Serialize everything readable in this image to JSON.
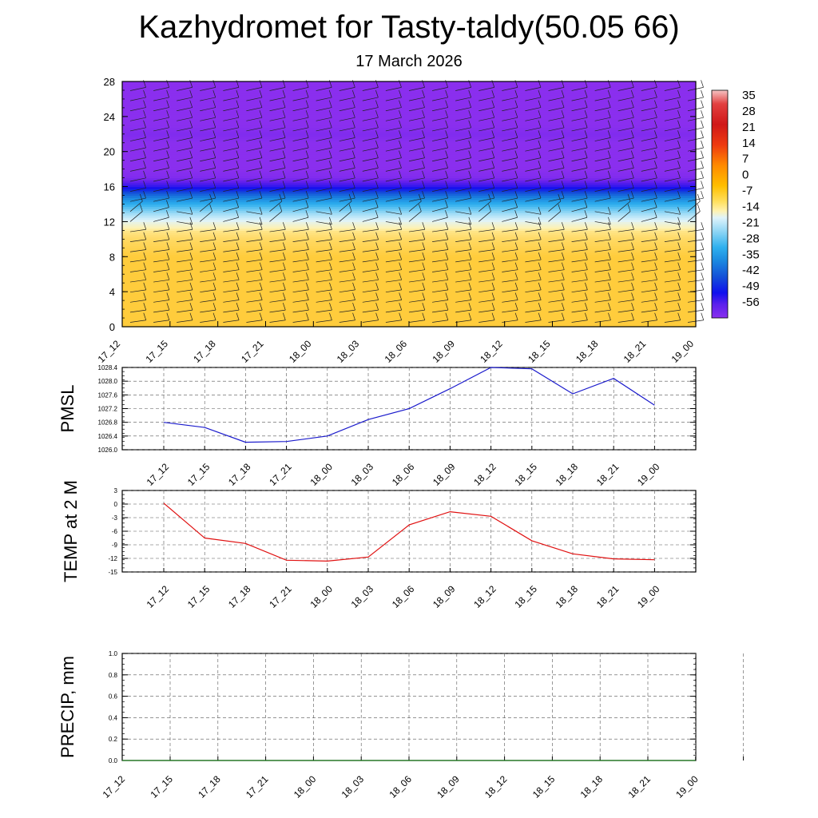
{
  "page": {
    "title": "Kazhydromet for Tasty-taldy(50.05 66)",
    "subtitle": "17 March 2026"
  },
  "colors": {
    "pmsl_line": "#1a1acc",
    "temp_line": "#e01010",
    "precip_line": "#1a7a1a",
    "barb": "#222222",
    "grid": "#555555"
  },
  "chart_data": [
    {
      "type": "heatmap",
      "name": "time-height-section",
      "title": "",
      "xlabel": "",
      "ylabel": "",
      "x_ticks": [
        "17_12",
        "17_15",
        "17_18",
        "17_21",
        "18_00",
        "18_03",
        "18_06",
        "18_09",
        "18_12",
        "18_15",
        "18_18",
        "18_21",
        "19_00"
      ],
      "y_ticks": [
        "0",
        "4",
        "8",
        "12",
        "16",
        "20",
        "24",
        "28"
      ],
      "ylim": [
        0,
        28
      ],
      "colorbar_labels": [
        "35",
        "28",
        "21",
        "14",
        "7",
        "0",
        "-7",
        "-14",
        "-21",
        "-28",
        "-35",
        "-42",
        "-49",
        "-56"
      ],
      "colorbar_range": [
        -60,
        38
      ],
      "levels_height": [
        0,
        1,
        2,
        3,
        4,
        5,
        6,
        7,
        8,
        9,
        10,
        11,
        12,
        13,
        14,
        15,
        16,
        17,
        18,
        19,
        20,
        21,
        22,
        23,
        24,
        25,
        26,
        27,
        28
      ],
      "temperature_profile": [
        -9,
        -9,
        -9,
        -9,
        -9,
        -9,
        -9,
        -9,
        -9,
        -9.5,
        -10,
        -11,
        -15,
        -21,
        -30,
        -40,
        -52,
        -59,
        -60,
        -60,
        -60,
        -60,
        -59,
        -60,
        -60,
        -60,
        -60,
        -60,
        -60
      ],
      "wind_barbs": "present at every level and time step",
      "grid": false
    },
    {
      "type": "line",
      "name": "pmsl",
      "ylabel": "PMSL",
      "xlabel": "",
      "title": "",
      "x": [
        "17_12",
        "17_15",
        "17_18",
        "17_21",
        "18_00",
        "18_03",
        "18_06",
        "18_09",
        "18_12",
        "18_15",
        "18_18",
        "18_21",
        "19_00"
      ],
      "y_ticks": [
        "1026.0",
        "1026.4",
        "1026.8",
        "1027.2",
        "1027.6",
        "1028.0",
        "1028.4"
      ],
      "ylim": [
        1026.0,
        1028.4
      ],
      "series": [
        {
          "values": [
            1026.8,
            1026.65,
            1026.22,
            1026.24,
            1026.4,
            1026.88,
            1027.2,
            1027.78,
            1028.4,
            1028.36,
            1027.63,
            1028.08,
            1027.3
          ]
        }
      ],
      "grid": true
    },
    {
      "type": "line",
      "name": "temp2m",
      "ylabel": "TEMP at 2 M",
      "xlabel": "",
      "title": "",
      "x": [
        "17_12",
        "17_15",
        "17_18",
        "17_21",
        "18_00",
        "18_03",
        "18_06",
        "18_09",
        "18_12",
        "18_15",
        "18_18",
        "18_21",
        "19_00"
      ],
      "y_ticks": [
        "3",
        "0",
        "-3",
        "-6",
        "-9",
        "-12",
        "-15"
      ],
      "ylim": [
        -15,
        3
      ],
      "series": [
        {
          "values": [
            0.2,
            -7.5,
            -8.7,
            -12.4,
            -12.6,
            -11.7,
            -4.6,
            -1.7,
            -2.7,
            -8.1,
            -11.0,
            -12.1,
            -12.3
          ]
        }
      ],
      "grid": true
    },
    {
      "type": "line",
      "name": "precip",
      "ylabel": "PRECIP, mm",
      "xlabel": "",
      "title": "",
      "x": [
        "17_12",
        "17_15",
        "17_18",
        "17_21",
        "18_00",
        "18_03",
        "18_06",
        "18_09",
        "18_12",
        "18_15",
        "18_18",
        "18_21",
        "19_00"
      ],
      "y_ticks": [
        "0.0",
        "0.2",
        "0.4",
        "0.6",
        "0.8",
        "1.0"
      ],
      "ylim": [
        0,
        1.0
      ],
      "series": [
        {
          "values": [
            0,
            0,
            0,
            0,
            0,
            0,
            0,
            0,
            0,
            0,
            0,
            0,
            0
          ]
        }
      ],
      "grid": true
    }
  ]
}
